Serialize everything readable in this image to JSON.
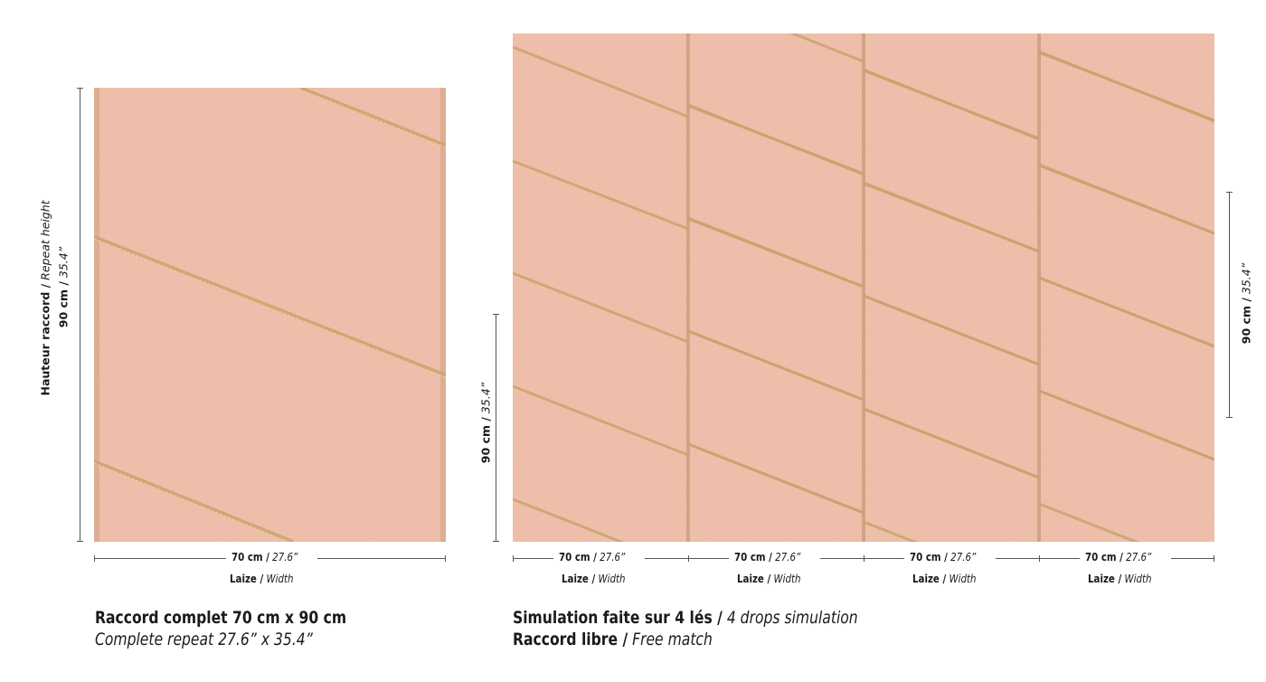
{
  "left_panel": {
    "height_label_bold": "Hauteur raccord /",
    "height_label_italic": "Repeat height",
    "height_value_bold": "90 cm /",
    "height_value_italic": "35.4”",
    "width_value_bold": "70 cm /",
    "width_value_italic": "27.6”",
    "width_caption_bold": "Laize /",
    "width_caption_italic": "Width",
    "caption_line1": "Raccord complet 70 cm x 90 cm",
    "caption_line2": "Complete repeat 27.6” x 35.4”"
  },
  "right_panel": {
    "left_height_bold": "90 cm /",
    "left_height_italic": "35.4”",
    "right_height_bold": "90 cm /",
    "right_height_italic": "35.4”",
    "drops": [
      {
        "value_bold": "70 cm /",
        "value_italic": "27.6”",
        "caption_bold": "Laize /",
        "caption_italic": "Width"
      },
      {
        "value_bold": "70 cm /",
        "value_italic": "27.6”",
        "caption_bold": "Laize /",
        "caption_italic": "Width"
      },
      {
        "value_bold": "70 cm /",
        "value_italic": "27.6”",
        "caption_bold": "Laize /",
        "caption_italic": "Width"
      },
      {
        "value_bold": "70 cm /",
        "value_italic": "27.6”",
        "caption_bold": "Laize /",
        "caption_italic": "Width"
      }
    ],
    "caption_line1_bold": "Simulation faite sur 4 lés /",
    "caption_line1_italic": "4 drops simulation",
    "caption_line2_bold": "Raccord libre /",
    "caption_line2_italic": "Free match"
  },
  "colors": {
    "wallpaper_base": "#f2c1ad",
    "gold_stripe": "#c9a46e",
    "seam": "#c8a27a"
  }
}
